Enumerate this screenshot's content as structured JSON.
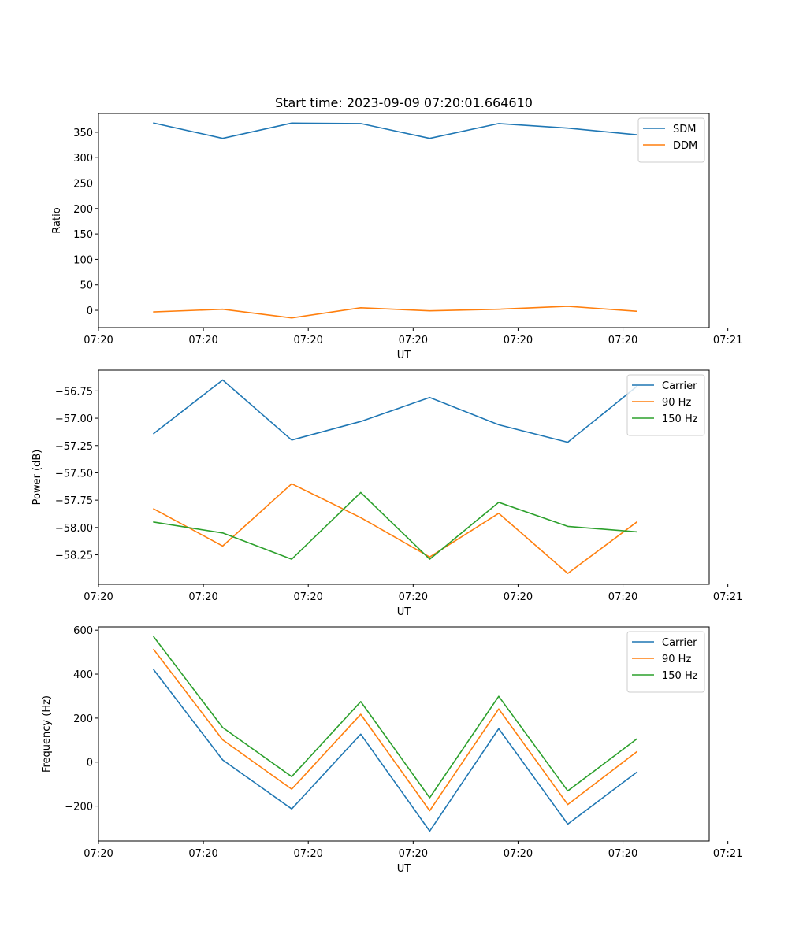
{
  "colors": {
    "blue": "#1f77b4",
    "orange": "#ff7f0e",
    "green": "#2ca02c"
  },
  "chart_data": [
    {
      "type": "line",
      "title": "Start time: 2023-09-09 07:20:01.664610",
      "xlabel": "UT",
      "ylabel": "Ratio",
      "x": [
        1,
        2,
        3,
        4,
        5,
        6,
        7,
        8
      ],
      "xlim": [
        0.2,
        9.05
      ],
      "x_ticks": [
        {
          "value": 0.2,
          "label": "07:20"
        },
        {
          "value": 1.72,
          "label": "07:20"
        },
        {
          "value": 3.24,
          "label": "07:20"
        },
        {
          "value": 4.76,
          "label": "07:20"
        },
        {
          "value": 6.28,
          "label": "07:20"
        },
        {
          "value": 7.8,
          "label": "07:20"
        },
        {
          "value": 9.32,
          "label": "07:21"
        }
      ],
      "ylim": [
        -34,
        387
      ],
      "y_ticks": [
        {
          "value": 0,
          "label": "0"
        },
        {
          "value": 50,
          "label": "50"
        },
        {
          "value": 100,
          "label": "100"
        },
        {
          "value": 150,
          "label": "150"
        },
        {
          "value": 200,
          "label": "200"
        },
        {
          "value": 250,
          "label": "250"
        },
        {
          "value": 300,
          "label": "300"
        },
        {
          "value": 350,
          "label": "350"
        }
      ],
      "legend_position": "upper right",
      "series": [
        {
          "name": "SDM",
          "color": "#1f77b4",
          "values": [
            368,
            338,
            368,
            367,
            338,
            367,
            358,
            345
          ]
        },
        {
          "name": "DDM",
          "color": "#ff7f0e",
          "values": [
            -3,
            2,
            -15,
            5,
            -1,
            2,
            8,
            -2
          ]
        }
      ]
    },
    {
      "type": "line",
      "title": "",
      "xlabel": "UT",
      "ylabel": "Power (dB)",
      "x": [
        1,
        2,
        3,
        4,
        5,
        6,
        7,
        8
      ],
      "xlim": [
        0.2,
        9.05
      ],
      "x_ticks": [
        {
          "value": 0.2,
          "label": "07:20"
        },
        {
          "value": 1.72,
          "label": "07:20"
        },
        {
          "value": 3.24,
          "label": "07:20"
        },
        {
          "value": 4.76,
          "label": "07:20"
        },
        {
          "value": 6.28,
          "label": "07:20"
        },
        {
          "value": 7.8,
          "label": "07:20"
        },
        {
          "value": 9.32,
          "label": "07:21"
        }
      ],
      "ylim": [
        -58.52,
        -56.56
      ],
      "y_ticks": [
        {
          "value": -58.25,
          "label": "−58.25"
        },
        {
          "value": -58.0,
          "label": "−58.00"
        },
        {
          "value": -57.75,
          "label": "−57.75"
        },
        {
          "value": -57.5,
          "label": "−57.50"
        },
        {
          "value": -57.25,
          "label": "−57.25"
        },
        {
          "value": -57.0,
          "label": "−57.00"
        },
        {
          "value": -56.75,
          "label": "−56.75"
        }
      ],
      "legend_position": "upper right",
      "series": [
        {
          "name": "Carrier",
          "color": "#1f77b4",
          "values": [
            -57.14,
            -56.65,
            -57.2,
            -57.03,
            -56.81,
            -57.06,
            -57.22,
            -56.71
          ]
        },
        {
          "name": "90 Hz",
          "color": "#ff7f0e",
          "values": [
            -57.83,
            -58.17,
            -57.6,
            -57.91,
            -58.27,
            -57.87,
            -58.42,
            -57.95
          ]
        },
        {
          "name": "150 Hz",
          "color": "#2ca02c",
          "values": [
            -57.95,
            -58.05,
            -58.29,
            -57.68,
            -58.29,
            -57.77,
            -57.99,
            -58.04
          ]
        }
      ]
    },
    {
      "type": "line",
      "title": "",
      "xlabel": "UT",
      "ylabel": "Frequency (Hz)",
      "x": [
        1,
        2,
        3,
        4,
        5,
        6,
        7,
        8
      ],
      "xlim": [
        0.2,
        9.05
      ],
      "x_ticks": [
        {
          "value": 0.2,
          "label": "07:20"
        },
        {
          "value": 1.72,
          "label": "07:20"
        },
        {
          "value": 3.24,
          "label": "07:20"
        },
        {
          "value": 4.76,
          "label": "07:20"
        },
        {
          "value": 6.28,
          "label": "07:20"
        },
        {
          "value": 7.8,
          "label": "07:20"
        },
        {
          "value": 9.32,
          "label": "07:21"
        }
      ],
      "ylim": [
        -359,
        615
      ],
      "y_ticks": [
        {
          "value": -200,
          "label": "−200"
        },
        {
          "value": 0,
          "label": "0"
        },
        {
          "value": 200,
          "label": "200"
        },
        {
          "value": 400,
          "label": "400"
        },
        {
          "value": 600,
          "label": "600"
        }
      ],
      "legend_position": "upper right",
      "series": [
        {
          "name": "Carrier",
          "color": "#1f77b4",
          "values": [
            420,
            10,
            -213,
            127,
            -314,
            152,
            -282,
            -46
          ]
        },
        {
          "name": "90 Hz",
          "color": "#ff7f0e",
          "values": [
            512,
            101,
            -123,
            217,
            -221,
            242,
            -193,
            47
          ]
        },
        {
          "name": "150 Hz",
          "color": "#2ca02c",
          "values": [
            570,
            157,
            -66,
            275,
            -162,
            299,
            -131,
            105
          ]
        }
      ]
    }
  ]
}
